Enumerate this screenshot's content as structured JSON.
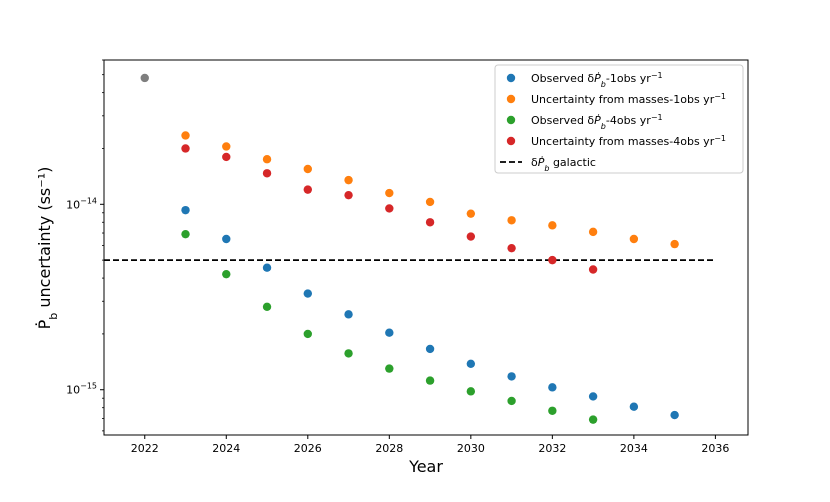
{
  "chart_data": {
    "type": "scatter",
    "xlabel": "Year",
    "ylabel": "Ṗb uncertainty (ss⁻¹)",
    "yscale": "log",
    "xlim": [
      2021,
      2036.8
    ],
    "ylim": [
      5.7e-16,
      6e-14
    ],
    "grid": false,
    "legend_position": "top-right",
    "x_ticks": [
      2022,
      2024,
      2026,
      2028,
      2030,
      2032,
      2034,
      2036
    ],
    "x_tick_labels": [
      "2022",
      "2024",
      "2026",
      "2028",
      "2030",
      "2032",
      "2034",
      "2036"
    ],
    "y_ticks": [
      1e-15,
      1e-14
    ],
    "y_tick_labels": [
      {
        "base": "10",
        "exp": "−15"
      },
      {
        "base": "10",
        "exp": "−14"
      }
    ],
    "series": [
      {
        "name": "Observed δṖb-1obs yr⁻¹",
        "color": "#1f77b4",
        "x": [
          2023,
          2024,
          2025,
          2026,
          2027,
          2028,
          2029,
          2030,
          2031,
          2032,
          2033,
          2034,
          2035
        ],
        "y": [
          9.3e-15,
          6.5e-15,
          4.55e-15,
          3.3e-15,
          2.55e-15,
          2.03e-15,
          1.66e-15,
          1.38e-15,
          1.18e-15,
          1.03e-15,
          9.2e-16,
          8.1e-16,
          7.3e-16
        ]
      },
      {
        "name": "Uncertainty from masses-1obs yr⁻¹",
        "color": "#ff7f0e",
        "x": [
          2023,
          2024,
          2025,
          2026,
          2027,
          2028,
          2029,
          2030,
          2031,
          2032,
          2033,
          2034,
          2035
        ],
        "y": [
          2.35e-14,
          2.05e-14,
          1.75e-14,
          1.55e-14,
          1.35e-14,
          1.15e-14,
          1.03e-14,
          8.9e-15,
          8.2e-15,
          7.7e-15,
          7.1e-15,
          6.5e-15,
          6.1e-15
        ]
      },
      {
        "name": "Observed δṖb-4obs yr⁻¹",
        "color": "#2ca02c",
        "x": [
          2023,
          2024,
          2025,
          2026,
          2027,
          2028,
          2029,
          2030,
          2031,
          2032,
          2033
        ],
        "y": [
          6.9e-15,
          4.2e-15,
          2.8e-15,
          2e-15,
          1.57e-15,
          1.3e-15,
          1.12e-15,
          9.8e-16,
          8.7e-16,
          7.7e-16,
          6.9e-16
        ]
      },
      {
        "name": "Uncertainty from masses-4obs yr⁻¹",
        "color": "#d62728",
        "x": [
          2023,
          2024,
          2025,
          2026,
          2027,
          2028,
          2029,
          2030,
          2031,
          2032,
          2033
        ],
        "y": [
          2e-14,
          1.8e-14,
          1.47e-14,
          1.2e-14,
          1.12e-14,
          9.5e-15,
          8e-15,
          6.7e-15,
          5.8e-15,
          5e-15,
          4.45e-15
        ]
      },
      {
        "name": "",
        "color": "#7f7f7f",
        "x": [
          2022
        ],
        "y": [
          4.8e-14
        ]
      }
    ],
    "reference_line": {
      "name": "δṖb galactic",
      "y": 5e-15,
      "x_range": [
        2021,
        2036
      ],
      "color": "#000000",
      "style": "dashed"
    },
    "legend": [
      {
        "marker": "dot",
        "color": "#1f77b4",
        "text": "Observed δṖb-1obs yr⁻¹"
      },
      {
        "marker": "dot",
        "color": "#ff7f0e",
        "text": "Uncertainty from masses-1obs yr⁻¹"
      },
      {
        "marker": "dot",
        "color": "#2ca02c",
        "text": "Observed δṖb-4obs yr⁻¹"
      },
      {
        "marker": "dot",
        "color": "#d62728",
        "text": "Uncertainty from masses-4obs yr⁻¹"
      },
      {
        "marker": "dash",
        "color": "#000000",
        "text": "δṖb galactic"
      }
    ]
  }
}
